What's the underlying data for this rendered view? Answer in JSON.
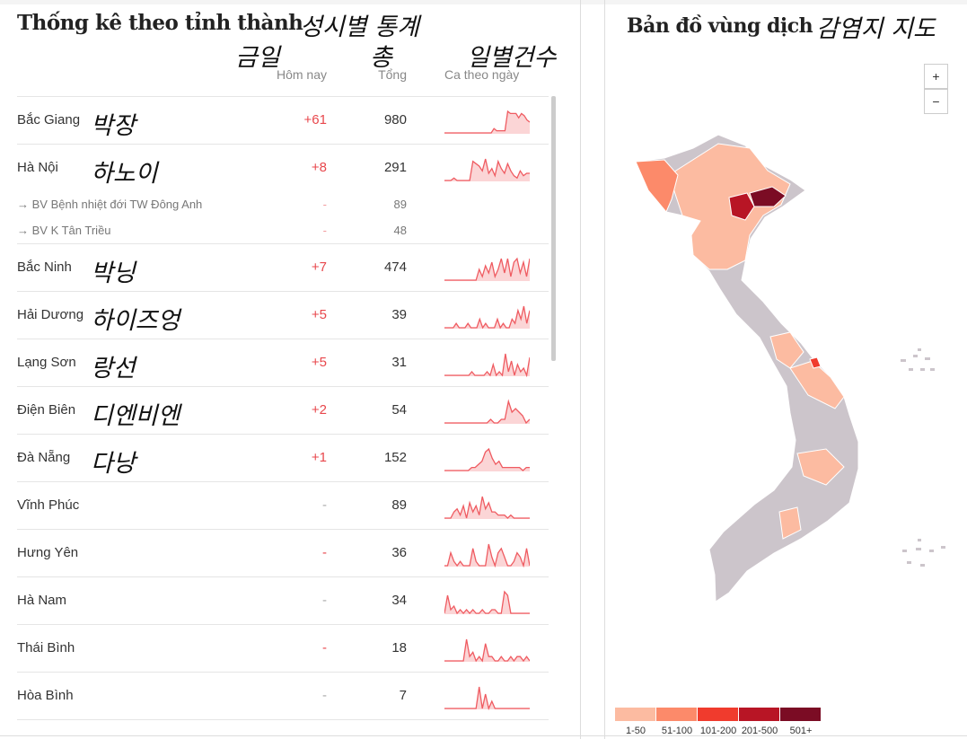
{
  "left": {
    "title": "Thống kê theo tỉnh thành",
    "title_annotation": "성시별 통계",
    "columns": {
      "today": "Hôm nay",
      "total": "Tổng",
      "daily": "Ca theo ngày"
    },
    "column_annotations": {
      "today": "금일",
      "total": "총",
      "daily": "일별건수"
    },
    "rows": [
      {
        "name": "Bắc Giang",
        "annotation": "박장",
        "today": "+61",
        "total": "980",
        "spark": [
          0,
          0,
          0,
          0,
          0,
          0,
          0,
          0,
          0,
          0,
          0,
          0,
          0,
          0,
          0,
          0,
          0,
          0,
          2,
          1,
          1,
          1,
          1,
          10,
          9,
          9,
          9,
          7,
          9,
          8,
          6,
          5
        ]
      },
      {
        "name": "Hà Nội",
        "annotation": "하노이",
        "today": "+8",
        "total": "291",
        "spark": [
          0,
          0,
          0,
          1,
          0,
          0,
          0,
          0,
          0,
          8,
          7,
          6,
          4,
          9,
          3,
          5,
          2,
          8,
          5,
          3,
          7,
          4,
          2,
          1,
          4,
          2,
          3,
          3
        ]
      },
      {
        "name": "→ BV Bệnh nhiệt đới TW Đông Anh",
        "today": "-",
        "total": "89",
        "sub": true
      },
      {
        "name": "→ BV K Tân Triều",
        "today": "-",
        "total": "48",
        "sub": true
      },
      {
        "name": "Bắc Ninh",
        "annotation": "박닝",
        "today": "+7",
        "total": "474",
        "spark": [
          0,
          0,
          0,
          0,
          0,
          0,
          0,
          0,
          0,
          0,
          0,
          3,
          1,
          4,
          2,
          5,
          1,
          3,
          6,
          2,
          6,
          1,
          5,
          6,
          2,
          5,
          1,
          6
        ]
      },
      {
        "name": "Hải Dương",
        "annotation": "하이즈엉",
        "today": "+5",
        "total": "39",
        "spark": [
          0,
          0,
          0,
          0,
          1,
          0,
          0,
          0,
          1,
          0,
          0,
          0,
          2,
          0,
          1,
          0,
          0,
          0,
          2,
          0,
          1,
          0,
          0,
          2,
          1,
          4,
          2,
          5,
          1,
          4
        ]
      },
      {
        "name": "Lạng Sơn",
        "annotation": "랑선",
        "today": "+5",
        "total": "31",
        "spark": [
          0,
          0,
          0,
          0,
          0,
          0,
          0,
          0,
          0,
          1,
          0,
          0,
          0,
          0,
          1,
          0,
          3,
          0,
          1,
          0,
          6,
          1,
          4,
          0,
          3,
          1,
          2,
          0,
          5
        ]
      },
      {
        "name": "Điện Biên",
        "annotation": "디엔비엔",
        "today": "+2",
        "total": "54",
        "spark": [
          0,
          0,
          0,
          0,
          0,
          0,
          0,
          0,
          0,
          0,
          0,
          0,
          0,
          1,
          0,
          0,
          1,
          1,
          6,
          3,
          4,
          3,
          2,
          0,
          1
        ]
      },
      {
        "name": "Đà Nẵng",
        "annotation": "다낭",
        "today": "+1",
        "total": "152",
        "spark": [
          0,
          0,
          0,
          0,
          0,
          0,
          0,
          0,
          1,
          1,
          2,
          3,
          6,
          7,
          4,
          2,
          3,
          1,
          1,
          1,
          1,
          1,
          1,
          0,
          1,
          1
        ]
      },
      {
        "name": "Vĩnh Phúc",
        "today": "-",
        "total": "89",
        "spark": [
          0,
          0,
          0,
          2,
          3,
          1,
          4,
          0,
          5,
          2,
          4,
          1,
          7,
          3,
          5,
          2,
          2,
          1,
          1,
          1,
          0,
          1,
          0,
          0,
          0,
          0,
          0,
          0
        ]
      },
      {
        "name": "Hưng Yên",
        "today": "-",
        "total": "36",
        "red_dash": true,
        "spark": [
          0,
          0,
          3,
          1,
          0,
          1,
          0,
          0,
          0,
          4,
          1,
          0,
          0,
          0,
          5,
          2,
          0,
          3,
          4,
          2,
          0,
          0,
          1,
          3,
          2,
          0,
          4,
          0
        ]
      },
      {
        "name": "Hà Nam",
        "today": "-",
        "total": "34",
        "spark": [
          0,
          5,
          1,
          2,
          0,
          1,
          0,
          1,
          0,
          1,
          0,
          0,
          1,
          0,
          0,
          1,
          1,
          0,
          0,
          6,
          5,
          0,
          0,
          0,
          0,
          0,
          0,
          0
        ]
      },
      {
        "name": "Thái Bình",
        "today": "-",
        "total": "18",
        "red_dash": true,
        "spark": [
          0,
          0,
          0,
          0,
          0,
          0,
          0,
          5,
          1,
          2,
          0,
          1,
          0,
          4,
          1,
          1,
          0,
          0,
          1,
          0,
          0,
          1,
          0,
          1,
          1,
          0,
          1,
          0
        ]
      },
      {
        "name": "Hòa Bình",
        "today": "-",
        "total": "7",
        "spark": [
          0,
          0,
          0,
          0,
          0,
          0,
          0,
          0,
          0,
          0,
          0,
          3,
          0,
          2,
          0,
          1,
          0,
          0,
          0,
          0,
          0,
          0,
          0,
          0,
          0,
          0,
          0,
          0
        ]
      }
    ]
  },
  "right": {
    "title": "Bản đồ vùng dịch",
    "title_annotation": "감염지 지도",
    "zoom_in": "+",
    "zoom_out": "−",
    "legend": [
      {
        "label": "1-50",
        "color": "#fcbba1"
      },
      {
        "label": "51-100",
        "color": "#fc8a6a"
      },
      {
        "label": "101-200",
        "color": "#f03b2d"
      },
      {
        "label": "201-500",
        "color": "#b81525"
      },
      {
        "label": "501+",
        "color": "#7b0c24"
      }
    ]
  }
}
